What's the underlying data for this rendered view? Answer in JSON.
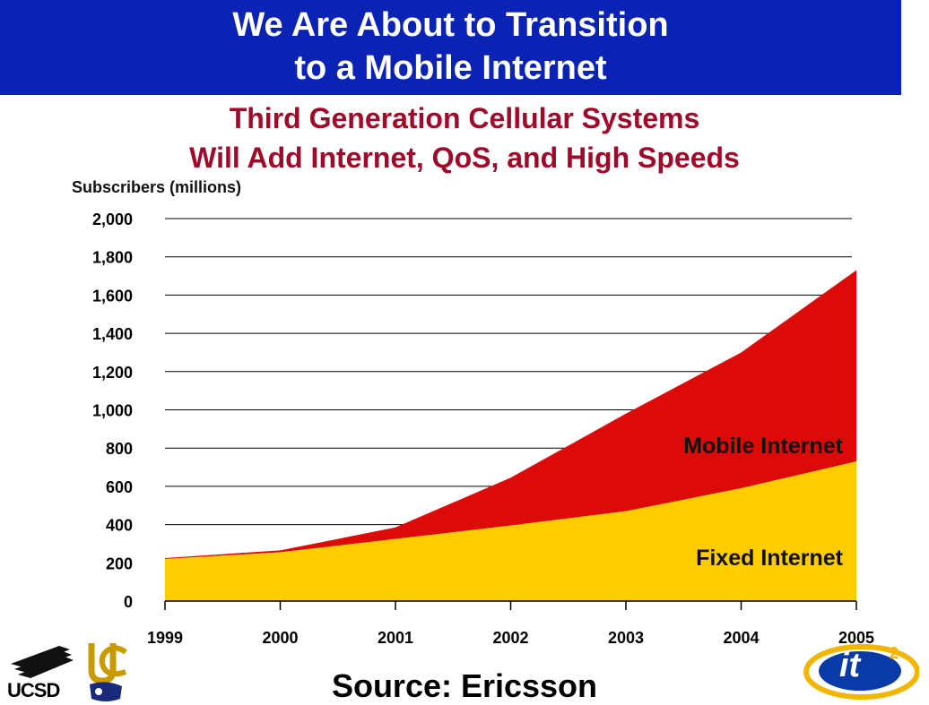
{
  "title": {
    "line1": "We Are About to Transition",
    "line2": "to a Mobile Internet"
  },
  "subtitle": {
    "line1": "Third Generation Cellular Systems",
    "line2": "Will Add Internet, QoS, and High Speeds"
  },
  "source": "Source: Ericsson",
  "logos": {
    "ucsd_text": "UCSD",
    "it2_text": "it",
    "it2_sup": "2"
  },
  "colors": {
    "title_bar": "#0a23b5",
    "subtitle": "#a00a2a",
    "mobile": "#dd0a0a",
    "fixed": "#ffcc00"
  },
  "chart_data": {
    "type": "area",
    "stacked": true,
    "ylabel": "Subscribers (millions)",
    "xlabel": "",
    "x": [
      "1999",
      "2000",
      "2001",
      "2002",
      "2003",
      "2004",
      "2005"
    ],
    "ylim": [
      0,
      2000
    ],
    "yticks": [
      "0",
      "200",
      "400",
      "600",
      "800",
      "1,000",
      "1,200",
      "1,400",
      "1,600",
      "1,800",
      "2,000"
    ],
    "grid": true,
    "series": [
      {
        "name": "Fixed Internet",
        "color": "#ffcc00",
        "values": [
          220,
          255,
          325,
          395,
          470,
          590,
          730
        ]
      },
      {
        "name": "Mobile Internet",
        "color": "#dd0a0a",
        "values": [
          5,
          10,
          60,
          250,
          510,
          710,
          1000
        ]
      }
    ]
  }
}
